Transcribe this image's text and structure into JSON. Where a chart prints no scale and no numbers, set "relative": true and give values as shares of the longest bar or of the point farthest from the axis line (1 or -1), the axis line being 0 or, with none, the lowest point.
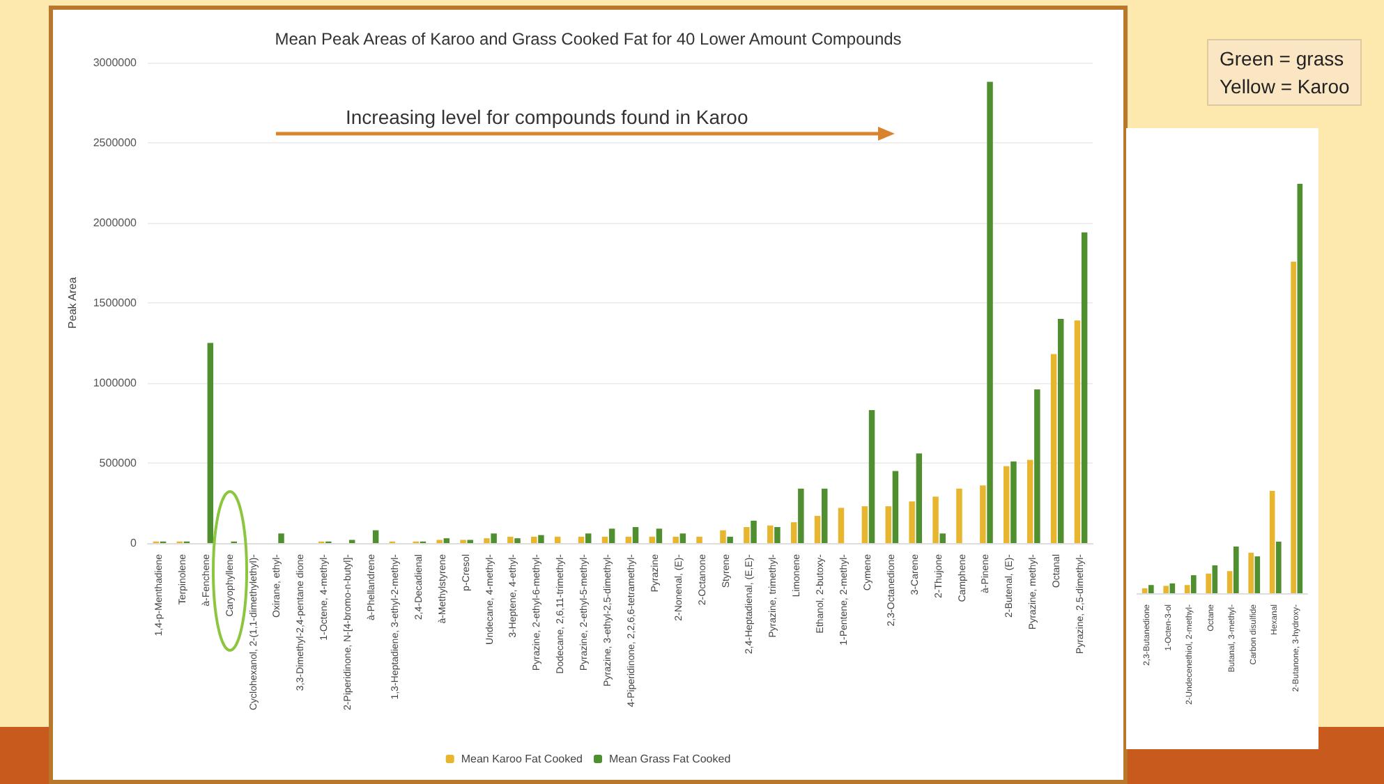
{
  "chart_data": [
    {
      "type": "bar",
      "title": "Mean Peak Areas of Karoo and Grass Cooked Fat for 40 Lower Amount Compounds",
      "ylabel": "Peak Area",
      "categories": [
        "1,4-p-Menthadiene",
        "Terpinolene",
        "à-Fenchene",
        "Caryophyllene",
        "Cyclohexanol, 2-(1,1-dimethylethyl)-",
        "Oxirane, ethyl-",
        "3,3-Dimethyl-2,4-pentane dione",
        "1-Octene, 4-methyl-",
        "2-Piperidinone, N-[4-bromo-n-butyl]-",
        "à-Phellandrene",
        "1,3-Heptadiene, 3-ethyl-2-methyl-",
        "2,4-Decadienal",
        "à-Methylstyrene",
        "p-Cresol",
        "Undecane, 4-methyl-",
        "3-Heptene, 4-ethyl-",
        "Pyrazine, 2-ethyl-6-methyl-",
        "Dodecane, 2,6,11-trimethyl-",
        "Pyrazine, 2-ethyl-5-methyl-",
        "Pyrazine, 3-ethyl-2,5-dimethyl-",
        "4-Piperidinone, 2,2,6,6-tetramethyl-",
        "Pyrazine",
        "2-Nonenal, (E)-",
        "2-Octanone",
        "Styrene",
        "2,4-Heptadienal, (E,E)-",
        "Pyrazine, trimethyl-",
        "Limonene",
        "Ethanol, 2-butoxy-",
        "1-Pentene, 2-methyl-",
        "Cymene",
        "2,3-Octanedione",
        "3-Carene",
        "2-Thujone",
        "Camphene",
        "à-Pinene",
        "2-Butenal, (E)-",
        "Pyrazine, methyl-",
        "Octanal",
        "Pyrazine, 2,5-dimethyl-"
      ],
      "series": [
        {
          "name": "Mean Karoo Fat Cooked",
          "color": "#e8b52e",
          "values": [
            10000,
            10000,
            0,
            0,
            0,
            0,
            0,
            10000,
            0,
            0,
            10000,
            10000,
            20000,
            20000,
            30000,
            40000,
            40000,
            40000,
            40000,
            40000,
            40000,
            40000,
            40000,
            40000,
            80000,
            100000,
            110000,
            130000,
            170000,
            220000,
            230000,
            230000,
            260000,
            290000,
            340000,
            360000,
            480000,
            520000,
            1180000,
            1390000
          ]
        },
        {
          "name": "Mean Grass Fat Cooked",
          "color": "#4f8f2f",
          "values": [
            10000,
            10000,
            1250000,
            10000,
            0,
            60000,
            0,
            10000,
            20000,
            80000,
            0,
            10000,
            30000,
            20000,
            60000,
            30000,
            50000,
            0,
            60000,
            90000,
            100000,
            90000,
            60000,
            0,
            40000,
            140000,
            100000,
            340000,
            340000,
            0,
            830000,
            450000,
            560000,
            60000,
            0,
            2880000,
            510000,
            960000,
            1400000,
            1940000
          ]
        }
      ],
      "ylim": [
        0,
        3000000
      ],
      "yticks": [
        0,
        500000,
        1000000,
        1500000,
        2000000,
        2500000,
        3000000
      ],
      "grid": "y",
      "legend": "bottom",
      "annotations": [
        "Increasing level for compounds  found in Karoo",
        "Green = grass\nYellow = Karoo"
      ]
    },
    {
      "type": "bar",
      "relative": true,
      "categories": [
        "2,3-Butanedione",
        "1-Octen-3-ol",
        "2-Undecenethiol, 2-methyl-",
        "Octane",
        "Butanal, 3-methyl-",
        "Carbon disulfide",
        "Hexanal",
        "2-Butanone, 3-hydroxy-"
      ],
      "series": [
        {
          "color": "#e8b52e",
          "values": [
            0.012,
            0.018,
            0.02,
            0.048,
            0.054,
            0.099,
            0.25,
            0.81
          ]
        },
        {
          "color": "#4f8f2f",
          "values": [
            0.02,
            0.024,
            0.044,
            0.068,
            0.114,
            0.09,
            0.126,
            1
          ]
        }
      ]
    }
  ]
}
